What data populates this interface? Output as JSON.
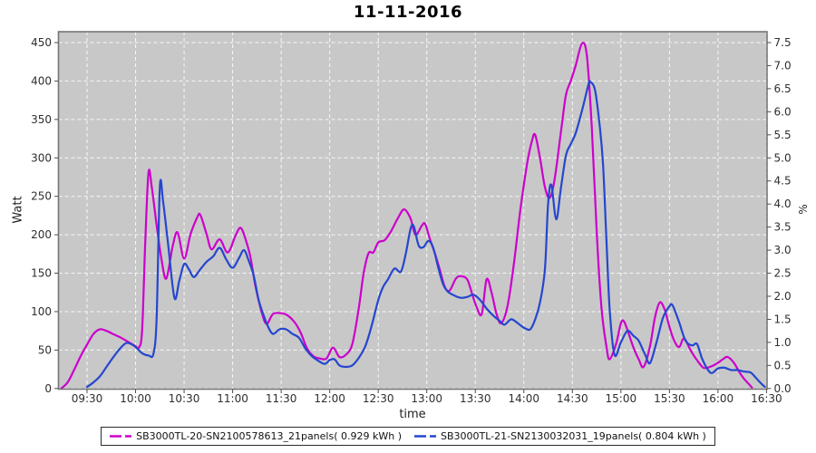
{
  "title": "11-11-2016",
  "colors": {
    "series1": "#cc00cc",
    "series2": "#2546cf",
    "plot_bg": "#c8c8c8",
    "grid": "#fafafa",
    "plot_border": "#757575",
    "tick_mark": "#4d4d4d",
    "tick_text": "#2e2e2e",
    "page_bg": "#ffffff"
  },
  "axes": {
    "left": {
      "label": "Watt",
      "ticks": [
        "0",
        "50",
        "100",
        "150",
        "200",
        "250",
        "300",
        "350",
        "400",
        "450"
      ]
    },
    "right": {
      "label": "%",
      "ticks": [
        "0.0",
        "0.5",
        "1.0",
        "1.5",
        "2.0",
        "2.5",
        "3.0",
        "3.5",
        "4.0",
        "4.5",
        "5.0",
        "5.5",
        "6.0",
        "6.5",
        "7.0",
        "7.5"
      ]
    },
    "bottom": {
      "label": "time",
      "ticks": [
        "09:30",
        "10:00",
        "10:30",
        "11:00",
        "11:30",
        "12:00",
        "12:30",
        "13:00",
        "13:30",
        "14:00",
        "14:30",
        "15:00",
        "15:30",
        "16:00",
        "16:30"
      ]
    }
  },
  "legend": {
    "items": [
      {
        "label": "SB3000TL-20-SN2100578613_21panels( 0.929 kWh )",
        "color": "#cc00cc"
      },
      {
        "label": "SB3000TL-21-SN2130032031_19panels( 0.804 kWh )",
        "color": "#2546cf"
      }
    ]
  },
  "chart_data": {
    "type": "line",
    "title": "11-11-2016",
    "xlabel": "time",
    "ylabel_left": "Watt",
    "ylabel_right": "%",
    "x_range": [
      "09:12",
      "16:30"
    ],
    "ylim_left": [
      0,
      450
    ],
    "ylim_right": [
      0.0,
      7.5
    ],
    "grid": true,
    "grid_style": "dashed-white",
    "legend_position": "bottom",
    "series": [
      {
        "name": "SB3000TL-20-SN2100578613_21panels( 0.929 kWh )",
        "energy_kwh": 0.929,
        "color": "#cc00cc",
        "points": [
          [
            "09:14",
            0
          ],
          [
            "09:18",
            8
          ],
          [
            "09:22",
            24
          ],
          [
            "09:26",
            42
          ],
          [
            "09:30",
            57
          ],
          [
            "09:34",
            71
          ],
          [
            "09:38",
            77
          ],
          [
            "09:42",
            75
          ],
          [
            "09:46",
            71
          ],
          [
            "09:51",
            66
          ],
          [
            "09:56",
            60
          ],
          [
            "10:00",
            55
          ],
          [
            "10:02",
            53
          ],
          [
            "10:04",
            75
          ],
          [
            "10:06",
            190
          ],
          [
            "10:08",
            281
          ],
          [
            "10:10",
            262
          ],
          [
            "10:13",
            213
          ],
          [
            "10:16",
            168
          ],
          [
            "10:19",
            143
          ],
          [
            "10:23",
            186
          ],
          [
            "10:26",
            203
          ],
          [
            "10:30",
            169
          ],
          [
            "10:34",
            201
          ],
          [
            "10:38",
            222
          ],
          [
            "10:40",
            226
          ],
          [
            "10:44",
            200
          ],
          [
            "10:47",
            181
          ],
          [
            "10:52",
            194
          ],
          [
            "10:57",
            177
          ],
          [
            "11:02",
            200
          ],
          [
            "11:05",
            209
          ],
          [
            "11:08",
            194
          ],
          [
            "11:11",
            171
          ],
          [
            "11:14",
            134
          ],
          [
            "11:18",
            99
          ],
          [
            "11:21",
            84
          ],
          [
            "11:25",
            97
          ],
          [
            "11:30",
            98
          ],
          [
            "11:34",
            95
          ],
          [
            "11:38",
            87
          ],
          [
            "11:42",
            73
          ],
          [
            "11:46",
            52
          ],
          [
            "11:50",
            42
          ],
          [
            "11:54",
            39
          ],
          [
            "11:58",
            39
          ],
          [
            "12:02",
            53
          ],
          [
            "12:06",
            41
          ],
          [
            "12:10",
            44
          ],
          [
            "12:14",
            58
          ],
          [
            "12:18",
            105
          ],
          [
            "12:21",
            150
          ],
          [
            "12:24",
            176
          ],
          [
            "12:27",
            177
          ],
          [
            "12:30",
            190
          ],
          [
            "12:34",
            193
          ],
          [
            "12:38",
            205
          ],
          [
            "12:42",
            221
          ],
          [
            "12:46",
            233
          ],
          [
            "12:50",
            221
          ],
          [
            "12:53",
            200
          ],
          [
            "12:57",
            212
          ],
          [
            "12:59",
            214
          ],
          [
            "13:02",
            194
          ],
          [
            "13:05",
            176
          ],
          [
            "13:08",
            155
          ],
          [
            "13:11",
            133
          ],
          [
            "13:14",
            127
          ],
          [
            "13:18",
            143
          ],
          [
            "13:21",
            146
          ],
          [
            "13:25",
            142
          ],
          [
            "13:28",
            123
          ],
          [
            "13:31",
            105
          ],
          [
            "13:34",
            97
          ],
          [
            "13:37",
            142
          ],
          [
            "13:40",
            125
          ],
          [
            "13:43",
            98
          ],
          [
            "13:46",
            85
          ],
          [
            "13:50",
            108
          ],
          [
            "13:54",
            165
          ],
          [
            "13:58",
            235
          ],
          [
            "14:02",
            292
          ],
          [
            "14:05",
            322
          ],
          [
            "14:07",
            330
          ],
          [
            "14:10",
            300
          ],
          [
            "14:13",
            262
          ],
          [
            "14:16",
            248
          ],
          [
            "14:19",
            272
          ],
          [
            "14:23",
            335
          ],
          [
            "14:26",
            382
          ],
          [
            "14:29",
            400
          ],
          [
            "14:32",
            420
          ],
          [
            "14:36",
            449
          ],
          [
            "14:39",
            432
          ],
          [
            "14:42",
            340
          ],
          [
            "14:45",
            205
          ],
          [
            "14:48",
            105
          ],
          [
            "14:51",
            55
          ],
          [
            "14:53",
            38
          ],
          [
            "14:57",
            58
          ],
          [
            "15:00",
            85
          ],
          [
            "15:02",
            87
          ],
          [
            "15:05",
            70
          ],
          [
            "15:08",
            52
          ],
          [
            "15:11",
            38
          ],
          [
            "15:14",
            28
          ],
          [
            "15:18",
            55
          ],
          [
            "15:21",
            92
          ],
          [
            "15:24",
            112
          ],
          [
            "15:27",
            103
          ],
          [
            "15:30",
            80
          ],
          [
            "15:33",
            62
          ],
          [
            "15:36",
            54
          ],
          [
            "15:39",
            65
          ],
          [
            "15:43",
            50
          ],
          [
            "15:47",
            37
          ],
          [
            "15:51",
            27
          ],
          [
            "15:55",
            28
          ],
          [
            "15:59",
            32
          ],
          [
            "16:03",
            38
          ],
          [
            "16:06",
            41
          ],
          [
            "16:10",
            33
          ],
          [
            "16:13",
            22
          ],
          [
            "16:16",
            13
          ],
          [
            "16:19",
            6
          ],
          [
            "16:21",
            1
          ]
        ]
      },
      {
        "name": "SB3000TL-21-SN2130032031_19panels( 0.804 kWh )",
        "energy_kwh": 0.804,
        "color": "#2546cf",
        "points": [
          [
            "09:30",
            2
          ],
          [
            "09:34",
            8
          ],
          [
            "09:38",
            16
          ],
          [
            "09:42",
            28
          ],
          [
            "09:46",
            40
          ],
          [
            "09:50",
            51
          ],
          [
            "09:54",
            59
          ],
          [
            "09:57",
            58
          ],
          [
            "10:00",
            54
          ],
          [
            "10:04",
            46
          ],
          [
            "10:08",
            43
          ],
          [
            "10:11",
            45
          ],
          [
            "10:13",
            90
          ],
          [
            "10:15",
            262
          ],
          [
            "10:17",
            243
          ],
          [
            "10:20",
            190
          ],
          [
            "10:24",
            118
          ],
          [
            "10:27",
            140
          ],
          [
            "10:30",
            162
          ],
          [
            "10:33",
            155
          ],
          [
            "10:36",
            145
          ],
          [
            "10:40",
            155
          ],
          [
            "10:44",
            165
          ],
          [
            "10:48",
            172
          ],
          [
            "10:52",
            183
          ],
          [
            "10:56",
            168
          ],
          [
            "11:00",
            157
          ],
          [
            "11:04",
            170
          ],
          [
            "11:07",
            180
          ],
          [
            "11:10",
            166
          ],
          [
            "11:13",
            147
          ],
          [
            "11:16",
            116
          ],
          [
            "11:19",
            96
          ],
          [
            "11:22",
            80
          ],
          [
            "11:25",
            71
          ],
          [
            "11:29",
            77
          ],
          [
            "11:33",
            77
          ],
          [
            "11:37",
            71
          ],
          [
            "11:41",
            66
          ],
          [
            "11:45",
            52
          ],
          [
            "11:49",
            42
          ],
          [
            "11:53",
            36
          ],
          [
            "11:57",
            32
          ],
          [
            "12:00",
            37
          ],
          [
            "12:03",
            38
          ],
          [
            "12:06",
            30
          ],
          [
            "12:10",
            28
          ],
          [
            "12:14",
            30
          ],
          [
            "12:18",
            40
          ],
          [
            "12:22",
            55
          ],
          [
            "12:26",
            82
          ],
          [
            "12:30",
            115
          ],
          [
            "12:33",
            132
          ],
          [
            "12:36",
            142
          ],
          [
            "12:40",
            156
          ],
          [
            "12:44",
            152
          ],
          [
            "12:47",
            175
          ],
          [
            "12:50",
            208
          ],
          [
            "12:52",
            211
          ],
          [
            "12:55",
            186
          ],
          [
            "12:58",
            184
          ],
          [
            "13:01",
            192
          ],
          [
            "13:04",
            183
          ],
          [
            "13:07",
            158
          ],
          [
            "13:10",
            136
          ],
          [
            "13:13",
            126
          ],
          [
            "13:17",
            121
          ],
          [
            "13:21",
            118
          ],
          [
            "13:25",
            119
          ],
          [
            "13:29",
            122
          ],
          [
            "13:33",
            115
          ],
          [
            "13:37",
            104
          ],
          [
            "13:41",
            95
          ],
          [
            "13:45",
            88
          ],
          [
            "13:48",
            83
          ],
          [
            "13:52",
            90
          ],
          [
            "13:55",
            87
          ],
          [
            "13:58",
            82
          ],
          [
            "14:01",
            78
          ],
          [
            "14:04",
            77
          ],
          [
            "14:07",
            90
          ],
          [
            "14:10",
            112
          ],
          [
            "14:13",
            155
          ],
          [
            "14:15",
            240
          ],
          [
            "14:17",
            265
          ],
          [
            "14:20",
            220
          ],
          [
            "14:23",
            262
          ],
          [
            "14:26",
            303
          ],
          [
            "14:29",
            318
          ],
          [
            "14:32",
            332
          ],
          [
            "14:36",
            362
          ],
          [
            "14:40",
            396
          ],
          [
            "14:41",
            399
          ],
          [
            "14:44",
            388
          ],
          [
            "14:47",
            340
          ],
          [
            "14:49",
            290
          ],
          [
            "14:51",
            195
          ],
          [
            "14:53",
            105
          ],
          [
            "14:56",
            44
          ],
          [
            "15:00",
            60
          ],
          [
            "15:04",
            75
          ],
          [
            "15:08",
            68
          ],
          [
            "15:11",
            62
          ],
          [
            "15:15",
            44
          ],
          [
            "15:18",
            33
          ],
          [
            "15:22",
            60
          ],
          [
            "15:26",
            92
          ],
          [
            "15:30",
            107
          ],
          [
            "15:32",
            108
          ],
          [
            "15:36",
            86
          ],
          [
            "15:40",
            62
          ],
          [
            "15:44",
            56
          ],
          [
            "15:47",
            58
          ],
          [
            "15:50",
            40
          ],
          [
            "15:53",
            27
          ],
          [
            "15:56",
            20
          ],
          [
            "16:00",
            26
          ],
          [
            "16:04",
            27
          ],
          [
            "16:08",
            24
          ],
          [
            "16:12",
            24
          ],
          [
            "16:16",
            22
          ],
          [
            "16:20",
            21
          ],
          [
            "16:23",
            15
          ],
          [
            "16:26",
            8
          ],
          [
            "16:29",
            2
          ]
        ]
      }
    ]
  }
}
